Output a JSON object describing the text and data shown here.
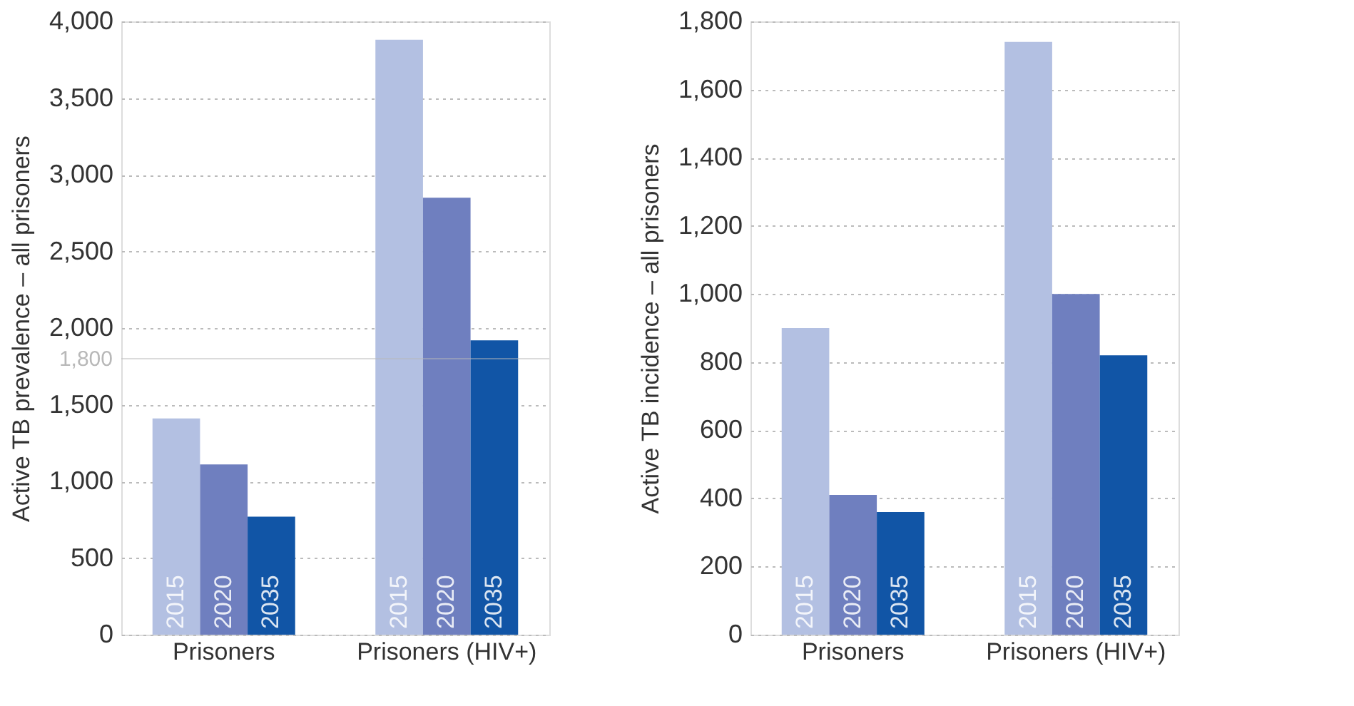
{
  "chart_data": [
    {
      "type": "bar",
      "ylabel": "Active TB prevalence – all prisoners",
      "categories": [
        "Prisoners",
        "Prisoners (HIV+)"
      ],
      "series": [
        {
          "name": "2015",
          "color": "#b3c0e2",
          "values": [
            1410,
            3880
          ]
        },
        {
          "name": "2020",
          "color": "#6f7fbf",
          "values": [
            1110,
            2850
          ]
        },
        {
          "name": "2035",
          "color": "#1155a6",
          "values": [
            770,
            1920
          ]
        }
      ],
      "ylim": [
        0,
        4000
      ],
      "yticks": [
        {
          "value": 0,
          "label": "0"
        },
        {
          "value": 500,
          "label": "500"
        },
        {
          "value": 1000,
          "label": "1,000"
        },
        {
          "value": 1500,
          "label": "1,500"
        },
        {
          "value": 2000,
          "label": "2,000"
        },
        {
          "value": 2500,
          "label": "2,500"
        },
        {
          "value": 3000,
          "label": "3,000"
        },
        {
          "value": 3500,
          "label": "3,500"
        },
        {
          "value": 4000,
          "label": "4,000"
        }
      ],
      "grid": "y",
      "legend": false,
      "ref_lines": [
        {
          "axis": "y",
          "value": 1800,
          "label": "1,800",
          "color": "#b8b8b8"
        }
      ]
    },
    {
      "type": "bar",
      "ylabel": "Active TB incidence – all prisoners",
      "categories": [
        "Prisoners",
        "Prisoners (HIV+)"
      ],
      "series": [
        {
          "name": "2015",
          "color": "#b3c0e2",
          "values": [
            900,
            1740
          ]
        },
        {
          "name": "2020",
          "color": "#6f7fbf",
          "values": [
            410,
            1000
          ]
        },
        {
          "name": "2035",
          "color": "#1155a6",
          "values": [
            360,
            820
          ]
        }
      ],
      "ylim": [
        0,
        1800
      ],
      "yticks": [
        {
          "value": 0,
          "label": "0"
        },
        {
          "value": 200,
          "label": "200"
        },
        {
          "value": 400,
          "label": "400"
        },
        {
          "value": 600,
          "label": "600"
        },
        {
          "value": 800,
          "label": "800"
        },
        {
          "value": 1000,
          "label": "1,000"
        },
        {
          "value": 1200,
          "label": "1,200"
        },
        {
          "value": 1400,
          "label": "1,400"
        },
        {
          "value": 1600,
          "label": "1,600"
        },
        {
          "value": 1800,
          "label": "1,800"
        }
      ],
      "grid": "y",
      "legend": false
    }
  ]
}
